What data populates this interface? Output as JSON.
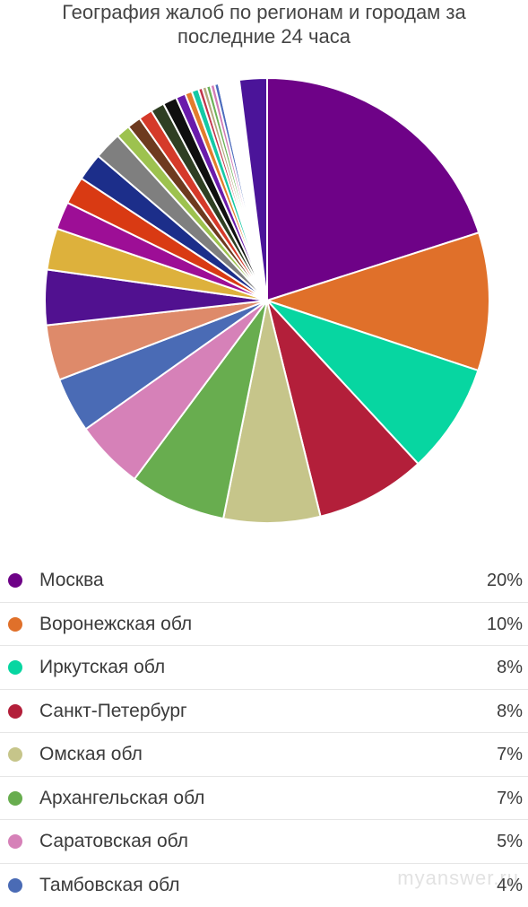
{
  "title": {
    "line1": "География жалоб по регионам и городам за",
    "line2": "последние 24 часа"
  },
  "watermark": "myanswer.ru",
  "chart_data": {
    "type": "pie",
    "title": "География жалоб по регионам и городам за последние 24 часа",
    "slices": [
      {
        "label": "Москва",
        "value": 20,
        "value_label": "20%",
        "color": "#6e0287"
      },
      {
        "label": "Воронежская обл",
        "value": 10,
        "value_label": "10%",
        "color": "#e0702a"
      },
      {
        "label": "Иркутская обл",
        "value": 8,
        "value_label": "8%",
        "color": "#07d6a1"
      },
      {
        "label": "Санкт-Петербург",
        "value": 8,
        "value_label": "8%",
        "color": "#b31f3a"
      },
      {
        "label": "Омская обл",
        "value": 7,
        "value_label": "7%",
        "color": "#c6c58a"
      },
      {
        "label": "Архангельская обл",
        "value": 7,
        "value_label": "7%",
        "color": "#68ad4f"
      },
      {
        "label": "Саратовская обл",
        "value": 5,
        "value_label": "5%",
        "color": "#d681b8"
      },
      {
        "label": "Тамбовская обл",
        "value": 4,
        "value_label": "4%",
        "color": "#4a6bb5"
      },
      {
        "value": 4,
        "color": "#de8a6a"
      },
      {
        "value": 4,
        "color": "#511190"
      },
      {
        "value": 3,
        "color": "#ddb13c"
      },
      {
        "value": 2,
        "color": "#9d0e96"
      },
      {
        "value": 2,
        "color": "#d93a13"
      },
      {
        "value": 2,
        "color": "#1c2e8a"
      },
      {
        "value": 2,
        "color": "#7f7f7f"
      },
      {
        "value": 1,
        "color": "#9dc24f"
      },
      {
        "value": 1,
        "color": "#6e3a1f"
      },
      {
        "value": 1,
        "color": "#d53a2a"
      },
      {
        "value": 1,
        "color": "#2f3f23"
      },
      {
        "value": 1,
        "color": "#0f0f0f"
      },
      {
        "value": 0.7,
        "color": "#6a1bab"
      },
      {
        "value": 0.5,
        "color": "#e37c2c"
      },
      {
        "value": 0.5,
        "color": "#14c9a5"
      },
      {
        "value": 0.3,
        "color": "#c0354b"
      },
      {
        "value": 0.3,
        "color": "#b5a97f"
      },
      {
        "value": 0.3,
        "color": "#6cb35a"
      },
      {
        "value": 0.3,
        "color": "#d27cb6"
      },
      {
        "value": 0.3,
        "color": "#4c6cbd"
      },
      {
        "value": 1.5,
        "color": "#ffffff"
      },
      {
        "value": 2,
        "color": "#4b1499"
      }
    ]
  }
}
